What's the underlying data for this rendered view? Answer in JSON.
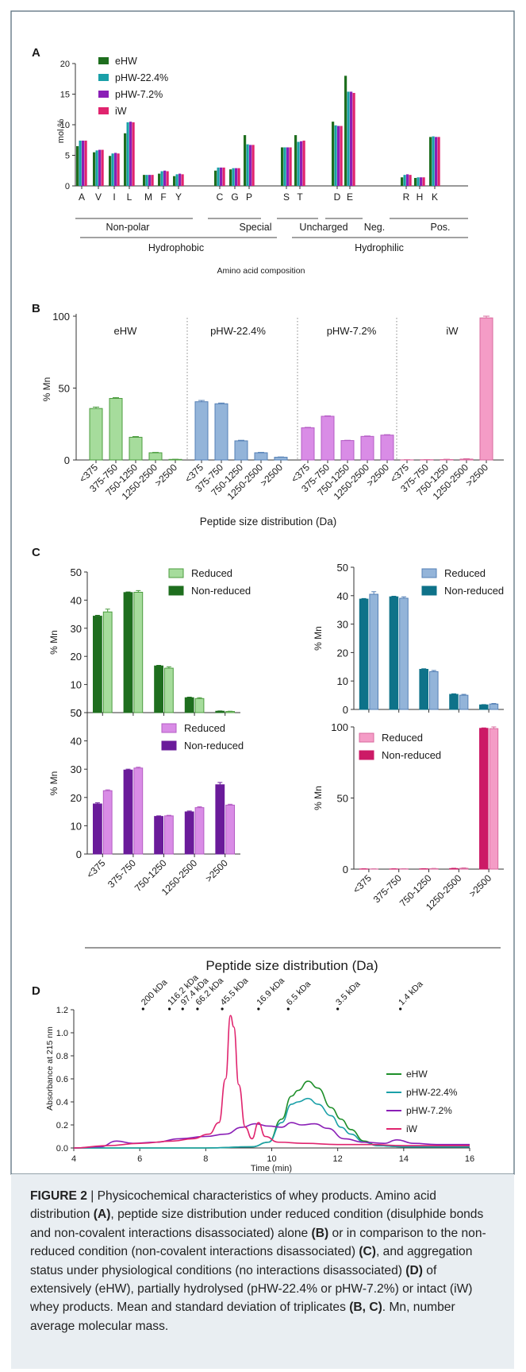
{
  "colors": {
    "eHW": "#1e6e1e",
    "pHW224": "#1aa0a8",
    "pHW72": "#8a1fb6",
    "iW": "#e0246e",
    "eHW_light": "#a6dc9c",
    "pHW224_light": "#93b4d9",
    "pHW72_light": "#d98ce6",
    "iW_light": "#f49cc6",
    "panelC_pHW224_dark": "#0e7289",
    "panelC_pHW72_dark": "#6a1b9a",
    "panelC_iW_dark": "#cc1a66",
    "frame": "#5a6f7e",
    "caption_bg": "#e9eef2"
  },
  "panel_labels": {
    "a": "A",
    "b": "B",
    "c": "C",
    "d": "D"
  },
  "chart_data": [
    {
      "id": "A",
      "type": "bar",
      "ylabel": "mol %",
      "ylim": [
        0,
        20
      ],
      "yticks": [
        0,
        5,
        10,
        15,
        20
      ],
      "categories": [
        "A",
        "V",
        "I",
        "L",
        "M",
        "F",
        "Y",
        "C",
        "G",
        "P",
        "S",
        "T",
        "D",
        "E",
        "R",
        "H",
        "K"
      ],
      "group_labels": [
        "Non-polar",
        "Special",
        "Uncharged",
        "Neg.",
        "Pos."
      ],
      "super_labels": [
        "Hydrophobic",
        "Hydrophilic"
      ],
      "xlabel": "Amino acid composition",
      "legend": [
        "eHW",
        "pHW-22.4%",
        "pHW-7.2%",
        "iW"
      ],
      "series": [
        {
          "name": "eHW",
          "values": [
            6.5,
            5.5,
            4.9,
            8.6,
            1.8,
            2.0,
            1.6,
            2.5,
            2.7,
            8.3,
            6.3,
            8.3,
            10.5,
            18.0,
            1.4,
            1.3,
            8.0
          ]
        },
        {
          "name": "pHW-22.4%",
          "values": [
            7.4,
            5.8,
            5.3,
            10.4,
            1.8,
            2.4,
            1.9,
            3.0,
            2.9,
            6.8,
            6.3,
            7.2,
            9.9,
            15.4,
            1.8,
            1.4,
            8.1
          ]
        },
        {
          "name": "pHW-7.2%",
          "values": [
            7.4,
            5.9,
            5.4,
            10.5,
            1.8,
            2.5,
            2.0,
            3.0,
            2.9,
            6.7,
            6.3,
            7.3,
            9.8,
            15.4,
            1.9,
            1.4,
            8.0
          ]
        },
        {
          "name": "iW",
          "values": [
            7.4,
            5.9,
            5.3,
            10.4,
            1.8,
            2.4,
            1.9,
            3.0,
            2.9,
            6.7,
            6.3,
            7.4,
            9.8,
            15.2,
            1.8,
            1.4,
            8.0
          ]
        }
      ]
    },
    {
      "id": "B",
      "type": "bar",
      "ylabel": "% Mn",
      "ylim": [
        0,
        100
      ],
      "yticks": [
        0,
        50,
        100
      ],
      "xlabel": "Peptide size distribution (Da)",
      "categories": [
        "<375",
        "375-750",
        "750-1250",
        "1250-2500",
        ">2500"
      ],
      "series": [
        {
          "name": "eHW",
          "values": [
            35.8,
            42.8,
            15.8,
            5.0,
            0.4
          ],
          "errors": [
            1.0,
            0.6,
            0.5,
            0.3,
            0.1
          ]
        },
        {
          "name": "pHW-22.4%",
          "values": [
            40.5,
            39.1,
            13.3,
            5.0,
            1.9
          ],
          "errors": [
            0.9,
            0.5,
            0.4,
            0.3,
            0.2
          ]
        },
        {
          "name": "pHW-7.2%",
          "values": [
            22.4,
            30.4,
            13.5,
            16.4,
            17.3
          ],
          "errors": [
            0.3,
            0.3,
            0.2,
            0.3,
            0.3
          ]
        },
        {
          "name": "iW",
          "values": [
            0.1,
            0.2,
            0.3,
            0.6,
            98.8
          ],
          "errors": [
            0.1,
            0.1,
            0.2,
            0.3,
            1.2
          ]
        }
      ]
    },
    {
      "id": "C1",
      "type": "bar",
      "ylabel": "% Mn",
      "ylim": [
        0,
        50
      ],
      "yticks": [
        0,
        10,
        20,
        30,
        40,
        50
      ],
      "legend": [
        "Reduced",
        "Non-reduced"
      ],
      "categories": [
        "<375",
        "375-750",
        "750-1250",
        "1250-2500",
        ">2500"
      ],
      "series": [
        {
          "name": "Non-reduced",
          "values": [
            34.3,
            42.7,
            16.6,
            5.3,
            0.5
          ],
          "errors": [
            0.3,
            0.2,
            0.2,
            0.2,
            0.1
          ]
        },
        {
          "name": "Reduced",
          "values": [
            35.8,
            42.8,
            15.8,
            5.0,
            0.4
          ],
          "errors": [
            1.0,
            0.6,
            0.5,
            0.3,
            0.1
          ]
        }
      ]
    },
    {
      "id": "C2",
      "type": "bar",
      "ylabel": "% Mn",
      "ylim": [
        0,
        50
      ],
      "yticks": [
        0,
        10,
        20,
        30,
        40,
        50
      ],
      "legend": [
        "Reduced",
        "Non-reduced"
      ],
      "categories": [
        "<375",
        "375-750",
        "750-1250",
        "1250-2500",
        ">2500"
      ],
      "series": [
        {
          "name": "Non-reduced",
          "values": [
            38.8,
            39.6,
            14.1,
            5.3,
            1.6
          ],
          "errors": [
            0.2,
            0.2,
            0.2,
            0.2,
            0.1
          ]
        },
        {
          "name": "Reduced",
          "values": [
            40.5,
            39.1,
            13.3,
            5.0,
            1.9
          ],
          "errors": [
            0.9,
            0.5,
            0.4,
            0.3,
            0.2
          ]
        }
      ]
    },
    {
      "id": "C3",
      "type": "bar",
      "ylabel": "% Mn",
      "ylim": [
        0,
        50
      ],
      "yticks": [
        0,
        10,
        20,
        30,
        40,
        50
      ],
      "legend": [
        "Reduced",
        "Non-reduced"
      ],
      "categories": [
        "<375",
        "375-750",
        "750-1250",
        "1250-2500",
        ">2500"
      ],
      "series": [
        {
          "name": "Non-reduced",
          "values": [
            17.7,
            29.7,
            13.3,
            14.9,
            24.5
          ],
          "errors": [
            0.4,
            0.3,
            0.2,
            0.3,
            0.8
          ]
        },
        {
          "name": "Reduced",
          "values": [
            22.4,
            30.4,
            13.5,
            16.4,
            17.3
          ],
          "errors": [
            0.3,
            0.3,
            0.2,
            0.3,
            0.3
          ]
        }
      ]
    },
    {
      "id": "C4",
      "type": "bar",
      "ylabel": "% Mn",
      "ylim": [
        0,
        100
      ],
      "yticks": [
        0,
        50,
        100
      ],
      "legend": [
        "Reduced",
        "Non-reduced"
      ],
      "categories": [
        "<375",
        "375-750",
        "750-1250",
        "1250-2500",
        ">2500"
      ],
      "xlabel": "Peptide size distribution (Da)",
      "series": [
        {
          "name": "Non-reduced",
          "values": [
            0.1,
            0.1,
            0.2,
            0.4,
            99.0
          ],
          "errors": [
            0.1,
            0.1,
            0.1,
            0.2,
            0.3
          ]
        },
        {
          "name": "Reduced",
          "values": [
            0.1,
            0.2,
            0.3,
            0.6,
            98.8
          ],
          "errors": [
            0.1,
            0.1,
            0.2,
            0.3,
            1.2
          ]
        }
      ]
    },
    {
      "id": "D",
      "type": "line",
      "xlabel": "Time (min)",
      "ylabel": "Absorbance at 215 nm",
      "xlim": [
        4,
        16
      ],
      "ylim": [
        0,
        1.2
      ],
      "xticks": [
        4,
        6,
        8,
        10,
        12,
        14,
        16
      ],
      "yticks": [
        0.0,
        0.2,
        0.4,
        0.6,
        0.8,
        1.0,
        1.2
      ],
      "markers": [
        {
          "label": "200 kDa",
          "x": 6.1
        },
        {
          "label": "116.2 kDa",
          "x": 6.9
        },
        {
          "label": "97.4 kDa",
          "x": 7.3
        },
        {
          "label": "66.2 kDa",
          "x": 7.75
        },
        {
          "label": "45.5 kDa",
          "x": 8.5
        },
        {
          "label": "16.9 kDa",
          "x": 9.6
        },
        {
          "label": "6.5 kDa",
          "x": 10.5
        },
        {
          "label": "3.5 kDa",
          "x": 12.0
        },
        {
          "label": "1.4 kDa",
          "x": 13.9
        }
      ],
      "series": [
        {
          "name": "eHW",
          "x": [
            4,
            8,
            9.4,
            9.9,
            10.3,
            10.6,
            10.8,
            11.1,
            11.4,
            11.8,
            12.1,
            12.4,
            12.8,
            13.2,
            14,
            15,
            16
          ],
          "y": [
            0,
            0,
            0.01,
            0.05,
            0.25,
            0.45,
            0.5,
            0.58,
            0.52,
            0.35,
            0.25,
            0.16,
            0.06,
            0.02,
            0.01,
            0.01,
            0.01
          ]
        },
        {
          "name": "pHW-22.4%",
          "x": [
            4,
            8,
            9.4,
            9.9,
            10.3,
            10.6,
            10.8,
            11.1,
            11.4,
            11.8,
            12.1,
            12.4,
            12.8,
            13.2,
            14,
            15,
            16
          ],
          "y": [
            0,
            0,
            0.01,
            0.05,
            0.22,
            0.38,
            0.4,
            0.43,
            0.38,
            0.28,
            0.18,
            0.12,
            0.05,
            0.02,
            0.01,
            0.01,
            0.01
          ]
        },
        {
          "name": "pHW-7.2%",
          "x": [
            4,
            4.8,
            5.3,
            5.8,
            6.5,
            7.2,
            8.0,
            8.6,
            9.1,
            9.5,
            9.9,
            10.3,
            10.6,
            10.9,
            11.3,
            11.7,
            12.2,
            12.8,
            13.4,
            13.8,
            14.3,
            15,
            16
          ],
          "y": [
            0,
            0.01,
            0.06,
            0.04,
            0.05,
            0.08,
            0.1,
            0.12,
            0.18,
            0.21,
            0.19,
            0.18,
            0.22,
            0.2,
            0.21,
            0.17,
            0.08,
            0.05,
            0.04,
            0.07,
            0.04,
            0.03,
            0.03
          ]
        },
        {
          "name": "iW",
          "x": [
            4,
            5.0,
            6.0,
            7.0,
            7.6,
            8.1,
            8.4,
            8.6,
            8.75,
            8.85,
            9.0,
            9.2,
            9.4,
            9.6,
            9.8,
            10.2,
            11,
            12,
            13,
            14,
            15,
            16
          ],
          "y": [
            0,
            0.02,
            0.04,
            0.06,
            0.08,
            0.12,
            0.22,
            0.6,
            1.15,
            1.05,
            0.55,
            0.18,
            0.08,
            0.22,
            0.1,
            0.05,
            0.04,
            0.03,
            0.03,
            0.02,
            0.02,
            0.02
          ]
        }
      ]
    }
  ],
  "caption": {
    "label": "FIGURE 2",
    "sep": " | ",
    "p1": "Physicochemical characteristics of whey products. Amino acid distribution ",
    "rA": "(A)",
    "p2": ", peptide size distribution under reduced condition (disulphide bonds and non-covalent interactions disassociated) alone ",
    "rB": "(B)",
    "p3": " or in comparison to the non-reduced condition (non-covalent interactions disassociated) ",
    "rC": "(C)",
    "p4": ", and aggregation status under physiological conditions (no interactions disassociated) ",
    "rD": "(D)",
    "p5": " of extensively (eHW), partially hydrolysed (pHW-22.4% or pHW-7.2%) or intact (iW) whey products. Mean and standard deviation of triplicates ",
    "rBC": "(B, C)",
    "p6": ". Mn, number average molecular mass."
  }
}
